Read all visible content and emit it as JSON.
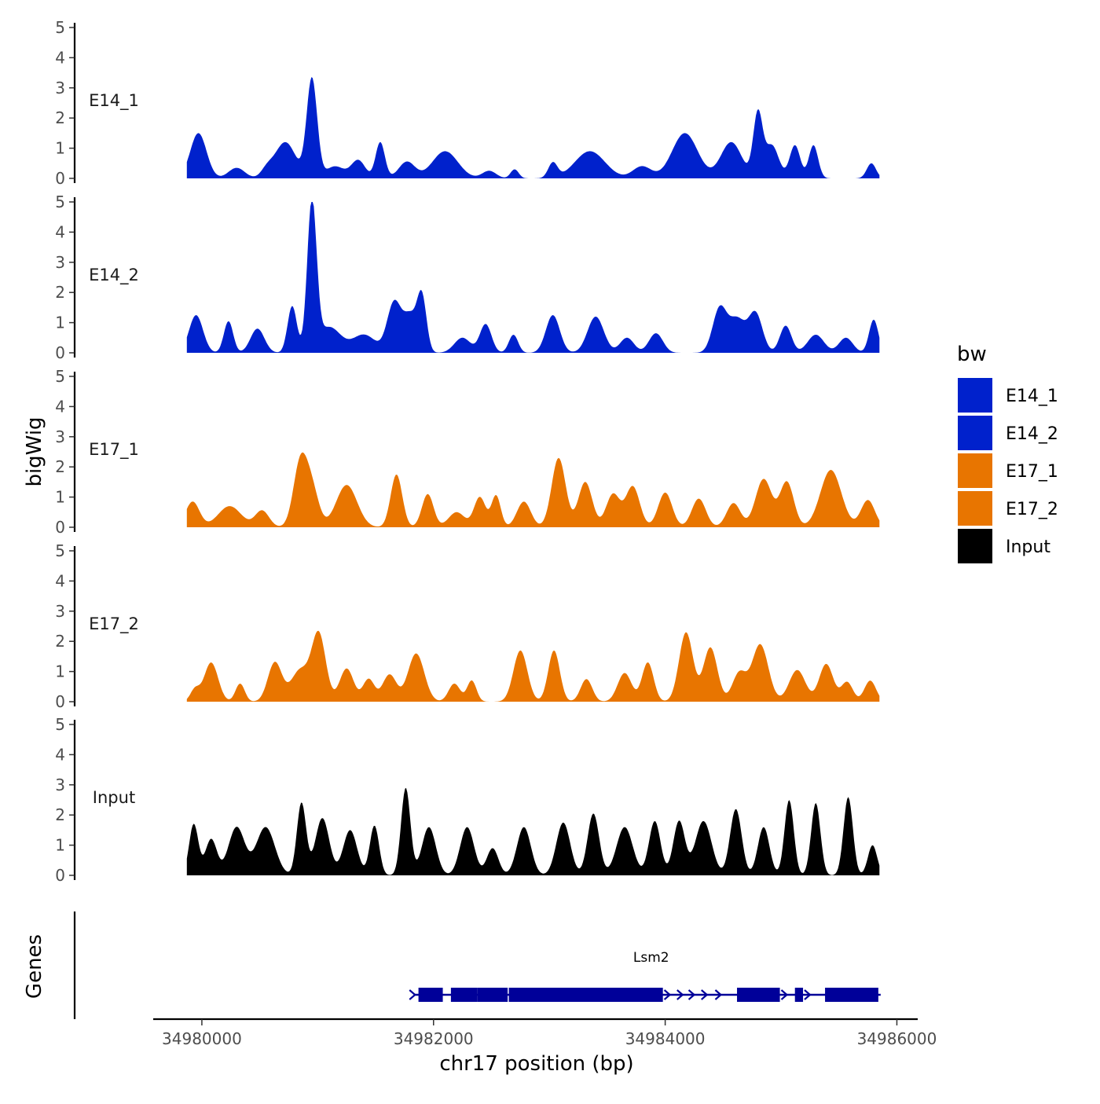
{
  "chart_data": {
    "type": "area",
    "title": "",
    "ylabel": "bigWig",
    "xlabel": "chr17 position (bp)",
    "genes_label": "Genes",
    "ylim": [
      0,
      5
    ],
    "yticks": [
      0,
      1,
      2,
      3,
      4,
      5
    ],
    "xlim": [
      34979580,
      34986180
    ],
    "xticks": [
      34980000,
      34982000,
      34984000,
      34986000
    ],
    "xtick_labels": [
      "34980000",
      "34982000",
      "34984000",
      "34986000"
    ],
    "data_range": [
      34979870,
      34985850
    ],
    "legend": {
      "title": "bw",
      "position": "right",
      "entries": [
        {
          "label": "E14_1",
          "color": "#0021CC"
        },
        {
          "label": "E14_2",
          "color": "#0021CC"
        },
        {
          "label": "E17_1",
          "color": "#E87500"
        },
        {
          "label": "E17_2",
          "color": "#E87500"
        },
        {
          "label": "Input",
          "color": "#000000"
        }
      ]
    },
    "tracks": [
      {
        "name": "E14_1",
        "color": "#0021CC",
        "peaks": [
          [
            34979970,
            1.5,
            70
          ],
          [
            34980300,
            0.35,
            70
          ],
          [
            34980560,
            0.25,
            50
          ],
          [
            34980720,
            1.2,
            90
          ],
          [
            34980950,
            3.3,
            45
          ],
          [
            34981150,
            0.4,
            80
          ],
          [
            34981350,
            0.6,
            60
          ],
          [
            34981540,
            1.2,
            40
          ],
          [
            34981770,
            0.55,
            70
          ],
          [
            34982100,
            0.9,
            110
          ],
          [
            34982480,
            0.25,
            60
          ],
          [
            34982700,
            0.3,
            35
          ],
          [
            34983030,
            0.5,
            40
          ],
          [
            34983350,
            0.9,
            130
          ],
          [
            34983800,
            0.4,
            80
          ],
          [
            34984170,
            1.5,
            110
          ],
          [
            34984570,
            1.2,
            90
          ],
          [
            34984800,
            2.1,
            40
          ],
          [
            34984920,
            1.1,
            60
          ],
          [
            34985120,
            1.1,
            45
          ],
          [
            34985280,
            1.1,
            40
          ],
          [
            34985780,
            0.5,
            40
          ]
        ]
      },
      {
        "name": "E14_2",
        "color": "#0021CC",
        "peaks": [
          [
            34979950,
            1.25,
            60
          ],
          [
            34980230,
            1.05,
            40
          ],
          [
            34980480,
            0.8,
            60
          ],
          [
            34980780,
            1.55,
            40
          ],
          [
            34980950,
            4.9,
            40
          ],
          [
            34981100,
            0.85,
            100
          ],
          [
            34981400,
            0.6,
            100
          ],
          [
            34981660,
            1.65,
            60
          ],
          [
            34981800,
            1.2,
            60
          ],
          [
            34981900,
            1.75,
            40
          ],
          [
            34982250,
            0.5,
            70
          ],
          [
            34982450,
            0.95,
            50
          ],
          [
            34982690,
            0.6,
            40
          ],
          [
            34983030,
            1.25,
            60
          ],
          [
            34983400,
            1.2,
            70
          ],
          [
            34983670,
            0.5,
            60
          ],
          [
            34983920,
            0.65,
            60
          ],
          [
            34984470,
            1.45,
            60
          ],
          [
            34984620,
            1.1,
            70
          ],
          [
            34984780,
            1.3,
            60
          ],
          [
            34985040,
            0.9,
            50
          ],
          [
            34985300,
            0.6,
            70
          ],
          [
            34985560,
            0.5,
            60
          ],
          [
            34985800,
            1.1,
            40
          ]
        ]
      },
      {
        "name": "E17_1",
        "color": "#E87500",
        "peaks": [
          [
            34979920,
            0.85,
            60
          ],
          [
            34980240,
            0.7,
            100
          ],
          [
            34980520,
            0.55,
            60
          ],
          [
            34980850,
            2.1,
            60
          ],
          [
            34980950,
            1.2,
            60
          ],
          [
            34981250,
            1.4,
            90
          ],
          [
            34981680,
            1.75,
            50
          ],
          [
            34981950,
            1.1,
            50
          ],
          [
            34982200,
            0.5,
            70
          ],
          [
            34982400,
            1.0,
            50
          ],
          [
            34982540,
            1.05,
            40
          ],
          [
            34982780,
            0.85,
            60
          ],
          [
            34983080,
            2.3,
            60
          ],
          [
            34983310,
            1.5,
            60
          ],
          [
            34983550,
            1.1,
            60
          ],
          [
            34983720,
            1.35,
            60
          ],
          [
            34984000,
            1.15,
            60
          ],
          [
            34984290,
            0.95,
            60
          ],
          [
            34984590,
            0.8,
            60
          ],
          [
            34984850,
            1.6,
            70
          ],
          [
            34985050,
            1.5,
            60
          ],
          [
            34985430,
            1.9,
            90
          ],
          [
            34985750,
            0.9,
            60
          ]
        ]
      },
      {
        "name": "E17_2",
        "color": "#E87500",
        "peaks": [
          [
            34979940,
            0.4,
            40
          ],
          [
            34980080,
            1.3,
            60
          ],
          [
            34980330,
            0.6,
            40
          ],
          [
            34980630,
            1.3,
            60
          ],
          [
            34980850,
            1.05,
            80
          ],
          [
            34981010,
            2.2,
            60
          ],
          [
            34981250,
            1.1,
            60
          ],
          [
            34981440,
            0.75,
            50
          ],
          [
            34981620,
            0.9,
            60
          ],
          [
            34981850,
            1.6,
            70
          ],
          [
            34982180,
            0.6,
            50
          ],
          [
            34982330,
            0.7,
            40
          ],
          [
            34982750,
            1.7,
            60
          ],
          [
            34983040,
            1.7,
            50
          ],
          [
            34983320,
            0.75,
            50
          ],
          [
            34983650,
            0.95,
            60
          ],
          [
            34983850,
            1.3,
            50
          ],
          [
            34984180,
            2.3,
            60
          ],
          [
            34984390,
            1.8,
            60
          ],
          [
            34984640,
            0.95,
            60
          ],
          [
            34984820,
            1.9,
            70
          ],
          [
            34985140,
            1.05,
            70
          ],
          [
            34985390,
            1.25,
            60
          ],
          [
            34985570,
            0.65,
            50
          ],
          [
            34985770,
            0.7,
            50
          ]
        ]
      },
      {
        "name": "Input",
        "color": "#000000",
        "peaks": [
          [
            34979930,
            1.7,
            40
          ],
          [
            34980080,
            1.2,
            50
          ],
          [
            34980300,
            1.6,
            70
          ],
          [
            34980550,
            1.6,
            80
          ],
          [
            34980860,
            2.4,
            40
          ],
          [
            34981040,
            1.9,
            60
          ],
          [
            34981280,
            1.5,
            60
          ],
          [
            34981490,
            1.65,
            40
          ],
          [
            34981760,
            2.9,
            40
          ],
          [
            34981960,
            1.6,
            60
          ],
          [
            34982290,
            1.6,
            60
          ],
          [
            34982510,
            0.9,
            50
          ],
          [
            34982780,
            1.6,
            60
          ],
          [
            34983120,
            1.75,
            60
          ],
          [
            34983380,
            2.05,
            50
          ],
          [
            34983650,
            1.6,
            70
          ],
          [
            34983910,
            1.8,
            50
          ],
          [
            34984120,
            1.8,
            50
          ],
          [
            34984330,
            1.8,
            70
          ],
          [
            34984610,
            2.2,
            50
          ],
          [
            34984850,
            1.6,
            50
          ],
          [
            34985070,
            2.5,
            40
          ],
          [
            34985300,
            2.4,
            40
          ],
          [
            34985580,
            2.6,
            40
          ],
          [
            34985790,
            1.0,
            40
          ]
        ]
      }
    ],
    "genes": [
      {
        "name": "Lsm2",
        "strand": "+",
        "start": 34981830,
        "end": 34985860,
        "exons": [
          [
            34981870,
            34982080
          ],
          [
            34982150,
            34982380
          ],
          [
            34982380,
            34982640
          ],
          [
            34982650,
            34983980
          ],
          [
            34984620,
            34984990
          ],
          [
            34985120,
            34985190
          ],
          [
            34985380,
            34985840
          ]
        ],
        "arrows": [
          34981820,
          34984020,
          34984130,
          34984230,
          34984340,
          34984460,
          34985030,
          34985230
        ]
      }
    ]
  }
}
